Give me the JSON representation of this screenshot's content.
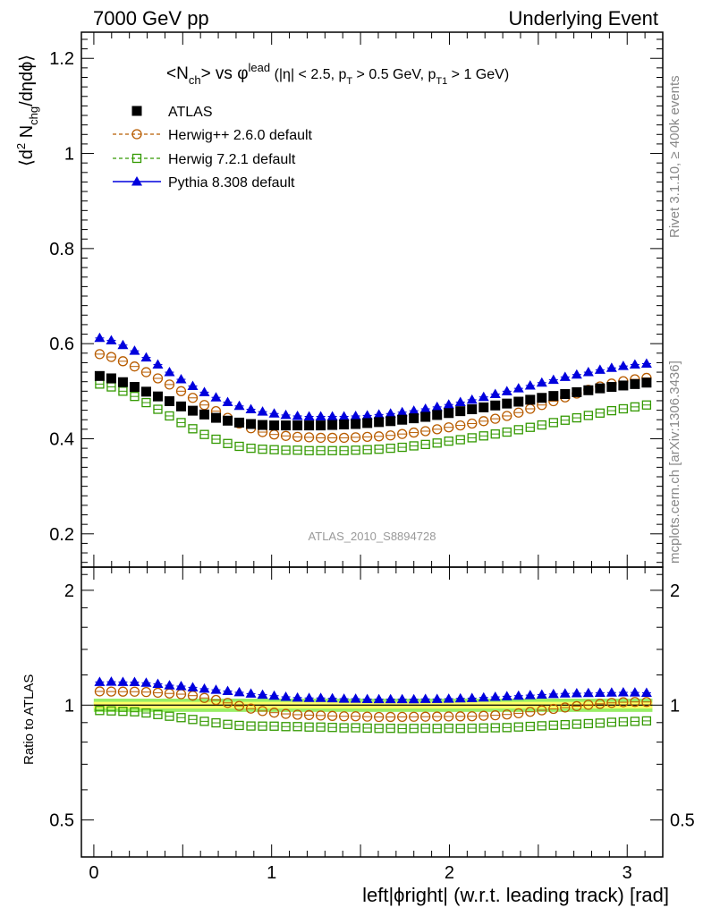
{
  "header": {
    "left_label": "7000 GeV pp",
    "right_label": "Underlying Event"
  },
  "side_labels": {
    "rivet": "Rivet 3.1.10, ≥ 400k events",
    "mcplots": "mcplots.cern.ch [arXiv:1306.3436]"
  },
  "colors": {
    "atlas": "#000000",
    "herwigpp": "#b85c00",
    "herwig7": "#339900",
    "pythia": "#0000dd",
    "band_inner": "#ffff66",
    "band_outer": "#99ee66"
  },
  "chart_data": [
    {
      "type": "scatter",
      "title": "<N_ch> vs φ^lead (|η| < 2.5, p_T > 0.5 GeV, p_T1 > 1 GeV)",
      "ylabel": "⟨d² N_chg/dηdφ⟩",
      "xlabel": "",
      "watermark": "ATLAS_2010_S8894728",
      "xlim": [
        -0.07,
        3.2
      ],
      "ylim": [
        0.13,
        1.255
      ],
      "yticks": [
        0.2,
        0.4,
        0.6,
        0.8,
        1,
        1.2
      ],
      "ytick_labels": [
        "0.2",
        "0.4",
        "0.6",
        "0.8",
        "1",
        "1.2"
      ],
      "legend_position": "top-left",
      "legend": [
        "ATLAS",
        "Herwig++ 2.6.0 default",
        "Herwig 7.2.1 default",
        "Pythia 8.308 default"
      ],
      "x": [
        0.0327,
        0.0982,
        0.1636,
        0.2291,
        0.2945,
        0.36,
        0.4254,
        0.4909,
        0.5563,
        0.6218,
        0.6872,
        0.7527,
        0.8181,
        0.8836,
        0.949,
        1.0145,
        1.0799,
        1.1454,
        1.2108,
        1.2763,
        1.3417,
        1.4072,
        1.4726,
        1.5381,
        1.6035,
        1.669,
        1.7344,
        1.7999,
        1.8653,
        1.9308,
        1.9962,
        2.0617,
        2.1271,
        2.1926,
        2.258,
        2.3235,
        2.3889,
        2.4544,
        2.5198,
        2.5853,
        2.6507,
        2.7162,
        2.7816,
        2.8471,
        2.9125,
        2.978,
        3.0434,
        3.1089
      ],
      "series": [
        {
          "name": "ATLAS",
          "marker": "filled-square",
          "values": [
            0.532,
            0.527,
            0.519,
            0.509,
            0.499,
            0.489,
            0.479,
            0.468,
            0.459,
            0.451,
            0.444,
            0.438,
            0.434,
            0.431,
            0.429,
            0.428,
            0.428,
            0.428,
            0.428,
            0.428,
            0.429,
            0.43,
            0.431,
            0.433,
            0.435,
            0.437,
            0.44,
            0.443,
            0.446,
            0.45,
            0.454,
            0.458,
            0.462,
            0.466,
            0.47,
            0.474,
            0.478,
            0.482,
            0.486,
            0.49,
            0.494,
            0.498,
            0.502,
            0.506,
            0.509,
            0.512,
            0.515,
            0.518
          ]
        },
        {
          "name": "Herwig++ 2.6.0 default",
          "marker": "open-circle",
          "line": "dashed",
          "values": [
            0.578,
            0.572,
            0.563,
            0.552,
            0.54,
            0.527,
            0.514,
            0.5,
            0.486,
            0.471,
            0.458,
            0.444,
            0.432,
            0.422,
            0.414,
            0.409,
            0.406,
            0.404,
            0.403,
            0.402,
            0.402,
            0.402,
            0.403,
            0.404,
            0.405,
            0.407,
            0.41,
            0.413,
            0.416,
            0.42,
            0.424,
            0.428,
            0.432,
            0.437,
            0.442,
            0.448,
            0.455,
            0.463,
            0.471,
            0.479,
            0.487,
            0.495,
            0.503,
            0.51,
            0.516,
            0.521,
            0.525,
            0.528
          ]
        },
        {
          "name": "Herwig 7.2.1 default",
          "marker": "open-square",
          "line": "dashed",
          "values": [
            0.515,
            0.509,
            0.5,
            0.489,
            0.476,
            0.462,
            0.448,
            0.434,
            0.421,
            0.409,
            0.399,
            0.39,
            0.384,
            0.38,
            0.378,
            0.377,
            0.376,
            0.376,
            0.375,
            0.375,
            0.375,
            0.375,
            0.376,
            0.377,
            0.378,
            0.38,
            0.382,
            0.385,
            0.388,
            0.391,
            0.395,
            0.398,
            0.402,
            0.406,
            0.41,
            0.414,
            0.419,
            0.424,
            0.429,
            0.434,
            0.439,
            0.444,
            0.449,
            0.454,
            0.459,
            0.463,
            0.467,
            0.471
          ]
        },
        {
          "name": "Pythia 8.308 default",
          "marker": "filled-triangle",
          "line": "solid",
          "values": [
            0.612,
            0.607,
            0.597,
            0.585,
            0.571,
            0.556,
            0.54,
            0.525,
            0.511,
            0.498,
            0.487,
            0.477,
            0.469,
            0.462,
            0.457,
            0.453,
            0.45,
            0.448,
            0.447,
            0.447,
            0.447,
            0.447,
            0.448,
            0.449,
            0.451,
            0.453,
            0.456,
            0.459,
            0.463,
            0.467,
            0.472,
            0.477,
            0.482,
            0.488,
            0.494,
            0.5,
            0.506,
            0.512,
            0.518,
            0.524,
            0.53,
            0.535,
            0.54,
            0.545,
            0.549,
            0.553,
            0.556,
            0.558
          ]
        }
      ]
    },
    {
      "type": "scatter",
      "title": "",
      "xlabel": "left|ϕright| (w.r.t. leading track) [rad]",
      "ylabel": "Ratio to ATLAS",
      "ylim": [
        0.4,
        2.3
      ],
      "log_y": true,
      "yticks": [
        0.5,
        1,
        2
      ],
      "ytick_labels": [
        "0.5",
        "1",
        "2"
      ],
      "xticks": [
        0,
        1,
        2,
        3
      ],
      "xtick_labels": [
        "0",
        "1",
        "2",
        "3"
      ],
      "reference_band": {
        "inner_halfwidth": 0.02,
        "outer_halfwidth": 0.04
      }
    }
  ]
}
